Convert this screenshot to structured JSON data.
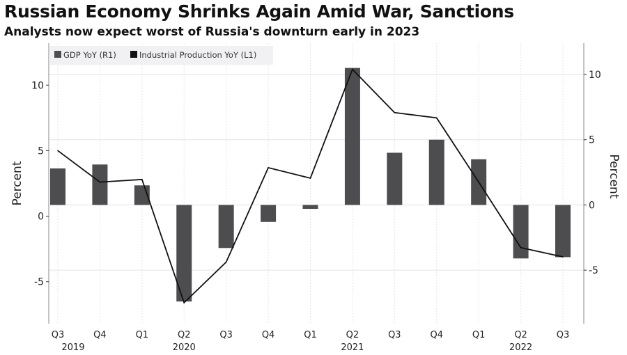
{
  "chart_data": {
    "type": "bar+line",
    "title": "Russian Economy Shrinks Again Amid War, Sanctions",
    "subtitle": "Analysts now expect worst of Russia's downturn early in 2023",
    "categories": [
      "Q3",
      "Q4",
      "Q1",
      "Q2",
      "Q3",
      "Q4",
      "Q1",
      "Q2",
      "Q3",
      "Q4",
      "Q1",
      "Q2",
      "Q3"
    ],
    "years": [
      {
        "label": "2019",
        "index": 0
      },
      {
        "label": "2020",
        "index": 3
      },
      {
        "label": "2021",
        "index": 7
      },
      {
        "label": "2022",
        "index": 11
      }
    ],
    "series": [
      {
        "name": "GDP YoY (R1)",
        "type": "bar",
        "axis": "right",
        "color": "#4d4c4f",
        "values": [
          2.8,
          3.1,
          1.5,
          -7.4,
          -3.3,
          -1.3,
          -0.3,
          10.5,
          4.0,
          5.0,
          3.5,
          -4.1,
          -4.0
        ]
      },
      {
        "name": "Industrial Production YoY (L1)",
        "type": "line",
        "axis": "left",
        "color": "#111111",
        "values": [
          5.0,
          2.6,
          2.8,
          -6.6,
          -3.5,
          3.7,
          2.9,
          11.2,
          7.9,
          7.5,
          2.6,
          -2.4,
          -3.1
        ]
      }
    ],
    "left_axis": {
      "label": "Percent",
      "ticks": [
        -5,
        0,
        5,
        10
      ],
      "ylim": [
        -8.2,
        13.2
      ]
    },
    "right_axis": {
      "label": "Percent",
      "ticks": [
        -5,
        0,
        5,
        10
      ],
      "ylim": [
        -9.1,
        12.4
      ]
    },
    "legend": "top-left",
    "grid": true
  }
}
